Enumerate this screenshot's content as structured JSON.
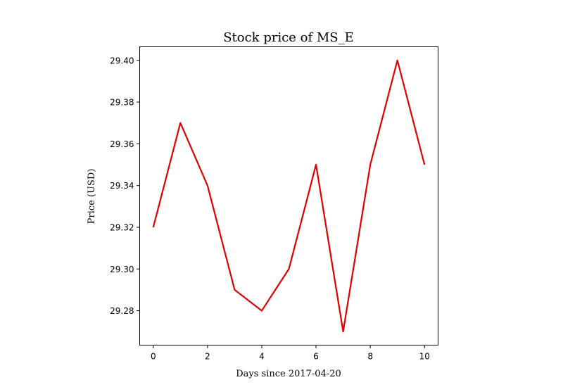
{
  "chart_data": {
    "type": "line",
    "title": "Stock price of MS_E",
    "xlabel": "Days since 2017-04-20",
    "ylabel": "Price (USD)",
    "x": [
      0,
      1,
      2,
      3,
      4,
      5,
      6,
      7,
      8,
      9,
      10
    ],
    "series": [
      {
        "name": "MS_E",
        "color": "#e00000",
        "values": [
          29.32,
          29.37,
          29.34,
          29.29,
          29.28,
          29.3,
          29.35,
          29.27,
          29.35,
          29.4,
          29.35
        ]
      }
    ],
    "xlim": [
      -0.5,
      10.5
    ],
    "ylim": [
      29.2635,
      29.4065
    ],
    "xticks": [
      0,
      2,
      4,
      6,
      8,
      10
    ],
    "xtick_labels": [
      "0",
      "2",
      "4",
      "6",
      "8",
      "10"
    ],
    "yticks": [
      29.28,
      29.3,
      29.32,
      29.34,
      29.36,
      29.38,
      29.4
    ],
    "ytick_labels": [
      "29.28",
      "29.30",
      "29.32",
      "29.34",
      "29.36",
      "29.38",
      "29.40"
    ],
    "grid": false,
    "legend": "none"
  }
}
